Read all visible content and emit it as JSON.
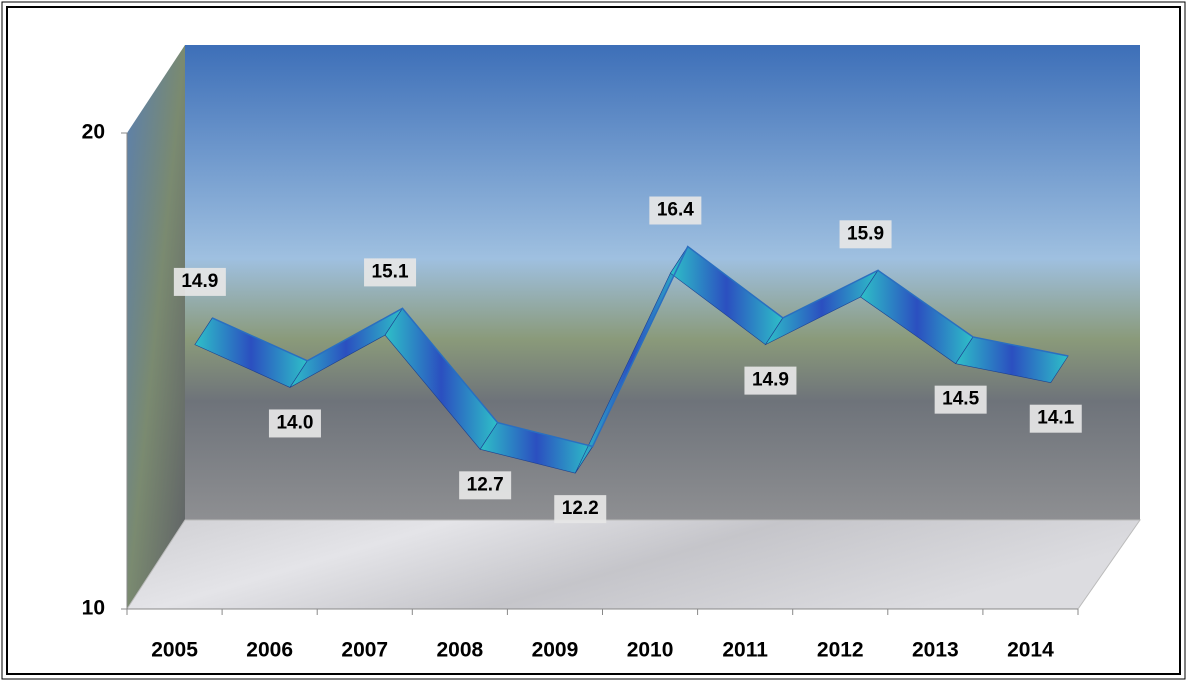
{
  "chart_data": {
    "type": "line",
    "categories": [
      "2005",
      "2006",
      "2007",
      "2008",
      "2009",
      "2010",
      "2011",
      "2012",
      "2013",
      "2014"
    ],
    "values": [
      14.9,
      14.0,
      15.1,
      12.7,
      12.2,
      16.4,
      14.9,
      15.9,
      14.5,
      14.1
    ],
    "value_labels": [
      "14.9",
      "14.0",
      "15.1",
      "12.7",
      "12.2",
      "16.4",
      "14.9",
      "15.9",
      "14.5",
      "14.1"
    ],
    "color": "#2a6fc0",
    "ylim": [
      10,
      20
    ],
    "yticks": [
      10,
      20
    ]
  }
}
